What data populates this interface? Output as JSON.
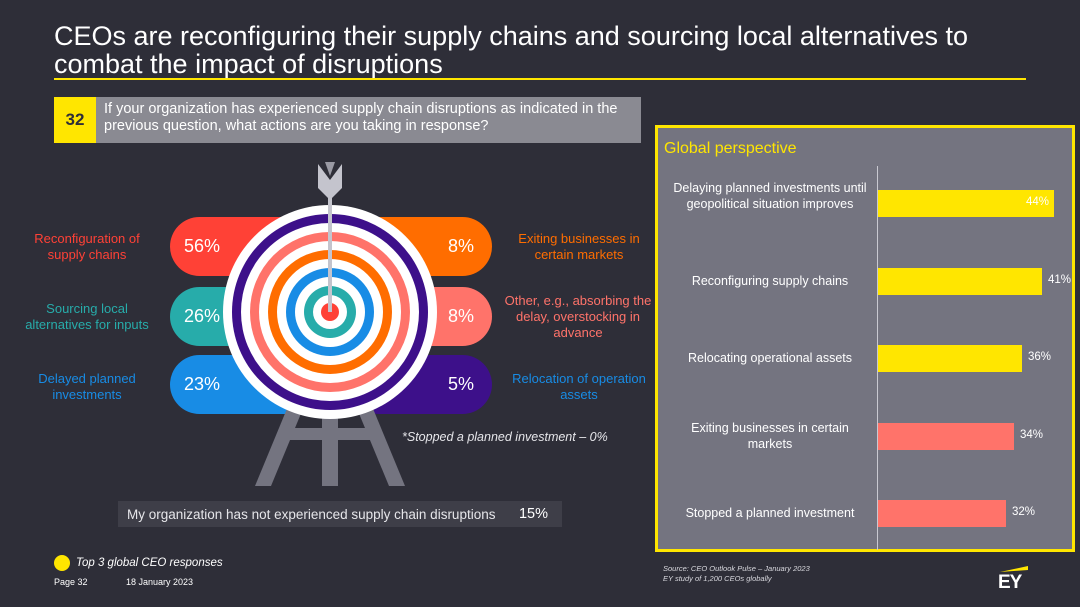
{
  "title": "CEOs are reconfiguring their supply chains and sourcing local alternatives to combat the impact of disruptions",
  "question": {
    "number": "32",
    "text": "If your organization has experienced supply chain disruptions as indicated in the previous question, what actions are you taking in response?"
  },
  "chart_data": [
    {
      "type": "pie",
      "categories": [
        "Reconfiguration of supply chains",
        "Sourcing local alternatives for inputs",
        "Delayed planned investments",
        "Exiting businesses in certain markets",
        "Other, e.g., absorbing the delay, overstocking in advance",
        "Relocation of operation assets"
      ],
      "values": [
        56,
        26,
        23,
        8,
        8,
        5
      ],
      "value_labels": [
        "56%",
        "26%",
        "23%",
        "8%",
        "8%",
        "5%"
      ],
      "colors": [
        "#ff4136",
        "#27acaa",
        "#188ce5",
        "#ff6d00",
        "#ff736a",
        "#3d108a"
      ],
      "footnote": "*Stopped a planned investment – 0%",
      "extra": {
        "label": "My organization has not experienced supply chain disruptions",
        "value": 15,
        "value_label": "15%"
      }
    },
    {
      "type": "bar",
      "title": "Global perspective",
      "orientation": "horizontal",
      "categories": [
        "Delaying planned investments until geopolitical situation improves",
        "Reconfiguring supply chains",
        "Relocating operational assets",
        "Exiting businesses in certain markets",
        "Stopped a planned investment"
      ],
      "values": [
        44,
        41,
        36,
        34,
        32
      ],
      "value_labels": [
        "44%",
        "41%",
        "36%",
        "34%",
        "32%"
      ],
      "bar_colors": [
        "#ffe600",
        "#ffe600",
        "#ffe600",
        "#ff736a",
        "#ff736a"
      ],
      "xlim": [
        0,
        44
      ]
    }
  ],
  "left_labels": {
    "reconfig": "Reconfiguration of supply chains",
    "sourcing": "Sourcing local alternatives for inputs",
    "delayed": "Delayed planned investments",
    "exiting": "Exiting businesses in certain markets",
    "other": "Other, e.g., absorbing the delay, overstocking in advance",
    "relocation": "Relocation of operation assets"
  },
  "legend": {
    "text": "Top 3 global CEO responses",
    "color": "#ffe600"
  },
  "footer": {
    "page": "Page 32",
    "date": "18 January 2023",
    "source_line1": "Source: CEO Outlook Pulse – January 2023",
    "source_line2": "EY study of 1,200 CEOs globally",
    "logo": "EY"
  },
  "colors": {
    "background": "#2e2e38",
    "accent": "#ffe600",
    "panel": "#747480",
    "coral": "#ff736a"
  }
}
